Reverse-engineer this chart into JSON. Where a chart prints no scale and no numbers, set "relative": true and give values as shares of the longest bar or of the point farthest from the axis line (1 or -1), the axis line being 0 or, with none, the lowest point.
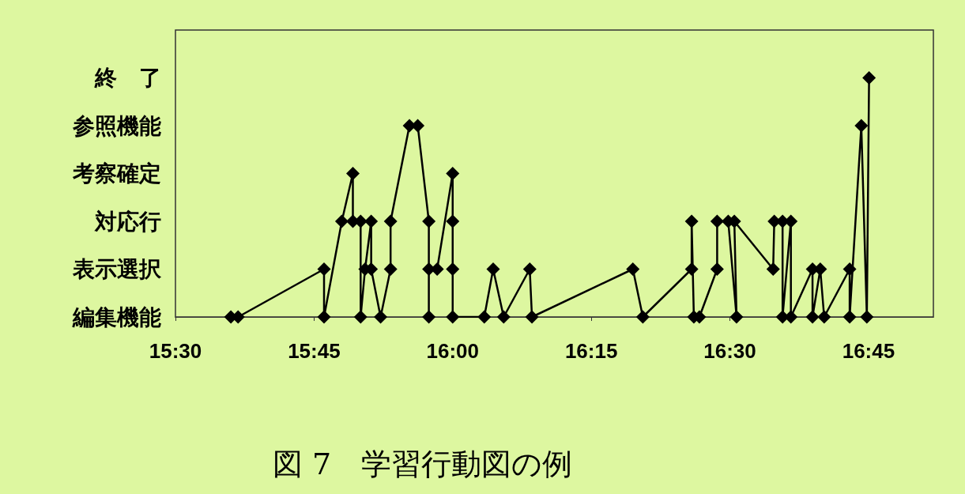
{
  "chart_data": {
    "type": "line",
    "title": "図 7　学習行動図の例",
    "relative": true,
    "xlim": [
      15.5,
      16.867
    ],
    "xticks": [
      {
        "value": 15.5,
        "label": "15:30"
      },
      {
        "value": 15.75,
        "label": "15:45"
      },
      {
        "value": 16,
        "label": "16:00"
      },
      {
        "value": 16.25,
        "label": "16:15"
      },
      {
        "value": 16.5,
        "label": "16:30"
      },
      {
        "value": 16.75,
        "label": "16:45"
      }
    ],
    "annotations": [
      "終　了",
      "参照機能",
      "考察確定",
      "対応行",
      "表示選択",
      "編集機能"
    ],
    "marker": "diamond",
    "line_style": "solid",
    "series": [
      {
        "color": "#000000",
        "x": [
          15.6,
          15.613,
          15.768,
          15.768,
          15.8,
          15.82,
          15.82,
          15.834,
          15.834,
          15.842,
          15.853,
          15.853,
          15.87,
          15.888,
          15.888,
          15.922,
          15.937,
          15.957,
          15.957,
          15.957,
          15.972,
          16.0,
          16.0,
          16.0,
          16.0,
          16.057,
          16.073,
          16.092,
          16.139,
          16.143,
          16.325,
          16.343,
          16.431,
          16.431,
          16.435,
          16.445,
          16.477,
          16.477,
          16.497,
          16.512,
          16.508,
          16.578,
          16.58,
          16.595,
          16.595,
          16.61,
          16.61,
          16.649,
          16.649,
          16.663,
          16.67,
          16.716,
          16.716,
          16.737,
          16.747,
          16.751
        ],
        "values": [
          0,
          0,
          0.2,
          0,
          0.4,
          0.6,
          0.4,
          0.4,
          0,
          0.2,
          0.4,
          0.2,
          0,
          0.2,
          0.4,
          0.8,
          0.8,
          0.4,
          0,
          0.2,
          0.2,
          0.6,
          0.4,
          0.2,
          0,
          0,
          0.2,
          0,
          0.2,
          0,
          0.2,
          0,
          0.2,
          0.4,
          0,
          0,
          0.2,
          0.4,
          0.4,
          0,
          0.4,
          0.2,
          0.4,
          0.4,
          0,
          0.4,
          0,
          0.2,
          0,
          0.2,
          0,
          0.2,
          0,
          0.8,
          0,
          1
        ]
      }
    ]
  }
}
